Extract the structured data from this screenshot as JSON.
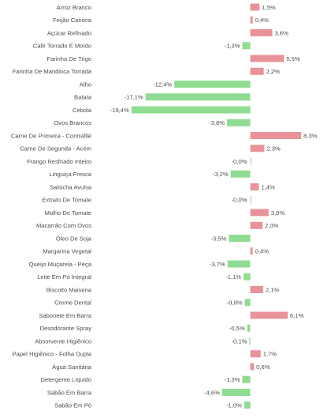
{
  "chart_data": {
    "type": "bar",
    "orientation": "horizontal",
    "title": "",
    "xlabel": "",
    "ylabel": "",
    "grid": false,
    "legend": "none",
    "xlim": [
      -20,
      9
    ],
    "colors": {
      "positive": "#e8939a",
      "negative": "#8fdc92",
      "zero_line": "#9ed9a0"
    },
    "categories": [
      "Arroz Branco",
      "Feijão Carioca",
      "Açúcar Refinado",
      "Café Torrado E Moído",
      "Farinha De Trigo",
      "Farinha De Mandioca Torrada",
      "Alho",
      "Batata",
      "Cebola",
      "Ovos Brancos",
      "Carne De Primeira - Contrafilé",
      "Carne De Segunda - Acém",
      "Frango Resfriado Inteiro",
      "Linguiça Fresca",
      "Salsicha Avulsa",
      "Extrato De Tomate",
      "Molho De Tomate",
      "Macarrão Com Ovos",
      "Óleo De Soja",
      "Margarina Vegetal",
      "Queijo Muçarela - Peça",
      "Leite Em Pó Integral",
      "Biscoito Maisena",
      "Creme Dental",
      "Sabonete Em Barra",
      "Desodorante Spray",
      "Absorvente Higiênico",
      "Papel Higiênico - Folha Dupla",
      "Água Sanitária",
      "Detergente Líquido",
      "Sabão Em Barra",
      "Sabão Em Pó"
    ],
    "values": [
      1.5,
      0.4,
      3.6,
      -1.3,
      5.5,
      2.2,
      -12.4,
      -17.1,
      -19.4,
      -3.8,
      8.3,
      2.3,
      -0.0,
      -3.2,
      1.4,
      -0.0,
      3.0,
      2.0,
      -3.5,
      0.4,
      -3.7,
      -1.1,
      2.1,
      -0.9,
      6.1,
      -0.5,
      -0.1,
      1.7,
      0.6,
      -1.3,
      -4.6,
      -1.0
    ],
    "value_labels": [
      "1,5%",
      "0,4%",
      "3,6%",
      "-1,3%",
      "5,5%",
      "2,2%",
      "-12,4%",
      "-17,1%",
      "-19,4%",
      "-3,8%",
      "8,3%",
      "2,3%",
      "-0,0%",
      "-3,2%",
      "1,4%",
      "-0,0%",
      "3,0%",
      "2,0%",
      "-3,5%",
      "0,4%",
      "-3,7%",
      "-1,1%",
      "2,1%",
      "-0,9%",
      "6,1%",
      "-0,5%",
      "-0,1%",
      "1,7%",
      "0,6%",
      "-1,3%",
      "-4,6%",
      "-1,0%"
    ]
  }
}
